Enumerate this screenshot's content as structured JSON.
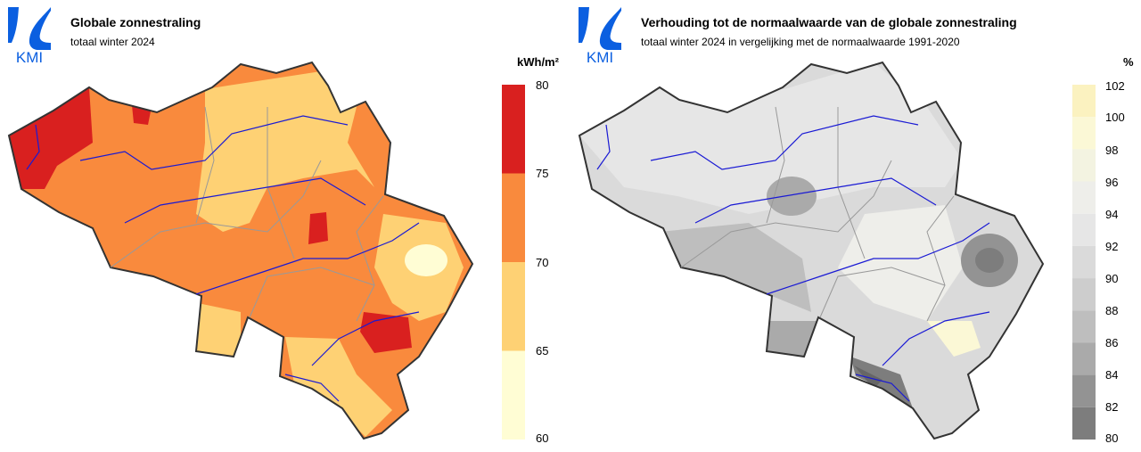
{
  "brand": {
    "logo_text": "KMI",
    "logo_color": "#0b5fe0"
  },
  "left": {
    "title": "Globale zonnestraling",
    "subtitle": "totaal winter 2024",
    "unit": "kWh/m²",
    "legend": {
      "ticks": [
        "80",
        "75",
        "70",
        "65",
        "60"
      ],
      "colors": [
        "#d9201f",
        "#f98a3d",
        "#fed174",
        "#fffdd4"
      ]
    },
    "map_icon": "belgium-solar-radiation-map"
  },
  "right": {
    "title": "Verhouding tot de normaalwaarde van de globale zonnestraling",
    "subtitle": "totaal winter 2024 in vergelijking met de normaalwaarde 1991-2020",
    "unit": "%",
    "legend": {
      "ticks": [
        "102",
        "100",
        "98",
        "96",
        "94",
        "92",
        "90",
        "88",
        "86",
        "84",
        "82",
        "80"
      ],
      "colors": [
        "#fbf2c0",
        "#fbf8d6",
        "#f3f3e1",
        "#eeeeea",
        "#e6e6e6",
        "#dadada",
        "#cdcdcd",
        "#bebebe",
        "#aaaaaa",
        "#939393",
        "#7d7d7d",
        "#666666"
      ]
    },
    "map_icon": "belgium-radiation-ratio-map"
  }
}
